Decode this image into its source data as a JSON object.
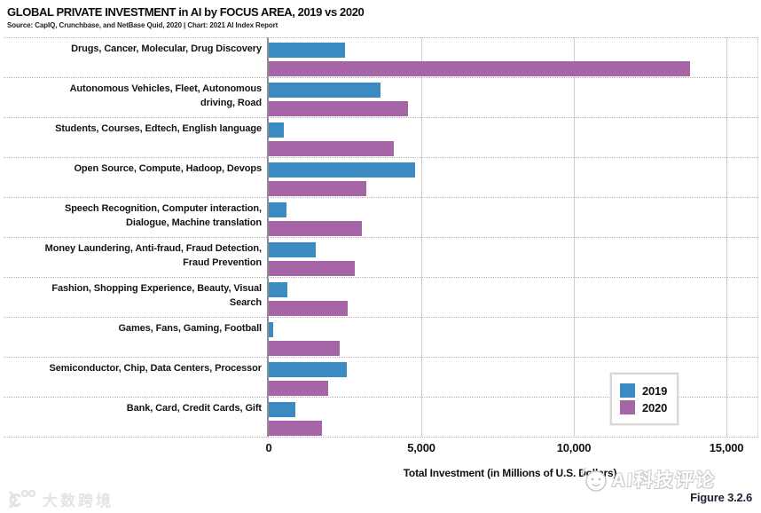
{
  "header": {
    "title": "GLOBAL PRIVATE INVESTMENT in AI by FOCUS AREA, 2019 vs 2020",
    "source": "Source: CapIQ, Crunchbase, and NetBase Quid, 2020 | Chart: 2021 AI Index Report"
  },
  "chart_data": {
    "type": "bar",
    "orientation": "horizontal",
    "title": "GLOBAL PRIVATE INVESTMENT in AI by FOCUS AREA, 2019 vs 2020",
    "xlabel": "Total Investment (in Millions of U.S. Dollars)",
    "xlim": [
      0,
      15000
    ],
    "xticks": [
      {
        "label": "0",
        "value": 0
      },
      {
        "label": "5,000",
        "value": 5000
      },
      {
        "label": "10,000",
        "value": 10000
      },
      {
        "label": "15,000",
        "value": 15000
      }
    ],
    "grid": "vertical-solid, horizontal-dotted-row-separators",
    "legend_position": "bottom-right-inside",
    "categories": [
      {
        "label": "Drugs, Cancer, Molecular, Drug Discovery",
        "lines": [
          "Drugs, Cancer, Molecular, Drug Discovery"
        ]
      },
      {
        "label": "Autonomous Vehicles, Fleet, Autonomous driving, Road",
        "lines": [
          "Autonomous Vehicles, Fleet, Autonomous",
          "driving, Road"
        ]
      },
      {
        "label": "Students, Courses, Edtech, English language",
        "lines": [
          "Students, Courses, Edtech, English language"
        ]
      },
      {
        "label": "Open Source, Compute, Hadoop, Devops",
        "lines": [
          "Open Source, Compute, Hadoop, Devops"
        ]
      },
      {
        "label": "Speech Recognition, Computer interaction, Dialogue, Machine translation",
        "lines": [
          "Speech Recognition, Computer interaction,",
          "Dialogue, Machine translation"
        ]
      },
      {
        "label": "Money Laundering, Anti-fraud, Fraud Detection, Fraud Prevention",
        "lines": [
          "Money Laundering, Anti-fraud, Fraud Detection,",
          "Fraud Prevention"
        ]
      },
      {
        "label": "Fashion, Shopping Experience, Beauty, Visual Search",
        "lines": [
          "Fashion, Shopping Experience, Beauty, Visual",
          "Search"
        ]
      },
      {
        "label": "Games, Fans, Gaming, Football",
        "lines": [
          "Games, Fans, Gaming, Football"
        ]
      },
      {
        "label": "Semiconductor, Chip, Data Centers, Processor",
        "lines": [
          "Semiconductor, Chip, Data Centers, Processor"
        ]
      },
      {
        "label": "Bank, Card, Credit Cards, Gift",
        "lines": [
          "Bank, Card, Credit Cards, Gift"
        ]
      }
    ],
    "series": [
      {
        "name": "2019",
        "color": "#3b8bc2",
        "values": [
          2500,
          3650,
          500,
          4800,
          580,
          1550,
          620,
          150,
          2550,
          880
        ]
      },
      {
        "name": "2020",
        "color": "#a565a7",
        "values": [
          13800,
          4550,
          4100,
          3200,
          3050,
          2830,
          2600,
          2340,
          1950,
          1750
        ]
      }
    ]
  },
  "legend": {
    "items": [
      {
        "label": "2019",
        "color": "#3b8bc2"
      },
      {
        "label": "2020",
        "color": "#a565a7"
      }
    ]
  },
  "figure_label": "Figure 3.2.6",
  "watermarks": {
    "bottom_left": "大数跨境",
    "bottom_right": "AI科技评论"
  },
  "colors": {
    "series_2019": "#3b8bc2",
    "series_2020": "#a565a7",
    "gridline": "#cfcfcf",
    "row_separator_dotted": "#b5b5b5",
    "zero_axis": "#8f8f8f"
  }
}
